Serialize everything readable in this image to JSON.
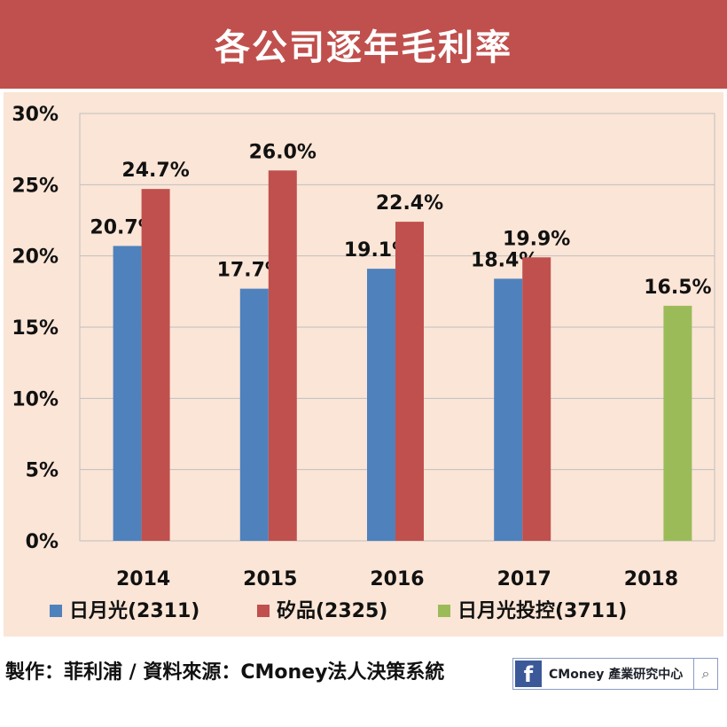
{
  "header": {
    "title": "各公司逐年毛利率"
  },
  "footer": {
    "credit": "製作：菲利浦 / 資料來源：CMoney法人決策系統",
    "fb_logo": "f",
    "fb_page_name": "CMoney 產業研究中心",
    "search_icon": "⌕"
  },
  "colors": {
    "series1": "#4f81bd",
    "series2": "#c0504d",
    "series3": "#9bbb59",
    "title_bg": "#c0504d",
    "plot_bg": "#fbe5d6"
  },
  "chart_data": {
    "type": "bar",
    "title": "各公司逐年毛利率",
    "categories": [
      "2014",
      "2015",
      "2016",
      "2017",
      "2018"
    ],
    "ylim": [
      0,
      30
    ],
    "yticks": [
      "0%",
      "5%",
      "10%",
      "15%",
      "20%",
      "25%",
      "30%"
    ],
    "grid": true,
    "legend_position": "bottom",
    "series": [
      {
        "name": "日月光(2311)",
        "values": [
          20.7,
          17.7,
          19.1,
          18.4,
          null
        ],
        "labels": [
          "20.7%",
          "17.7%",
          "19.1%",
          "18.4%",
          null
        ]
      },
      {
        "name": "矽品(2325)",
        "values": [
          24.7,
          26.0,
          22.4,
          19.9,
          null
        ],
        "labels": [
          "24.7%",
          "26.0%",
          "22.4%",
          "19.9%",
          null
        ]
      },
      {
        "name": "日月光投控(3711)",
        "values": [
          null,
          null,
          null,
          null,
          16.5
        ],
        "labels": [
          null,
          null,
          null,
          null,
          "16.5%"
        ]
      }
    ]
  }
}
